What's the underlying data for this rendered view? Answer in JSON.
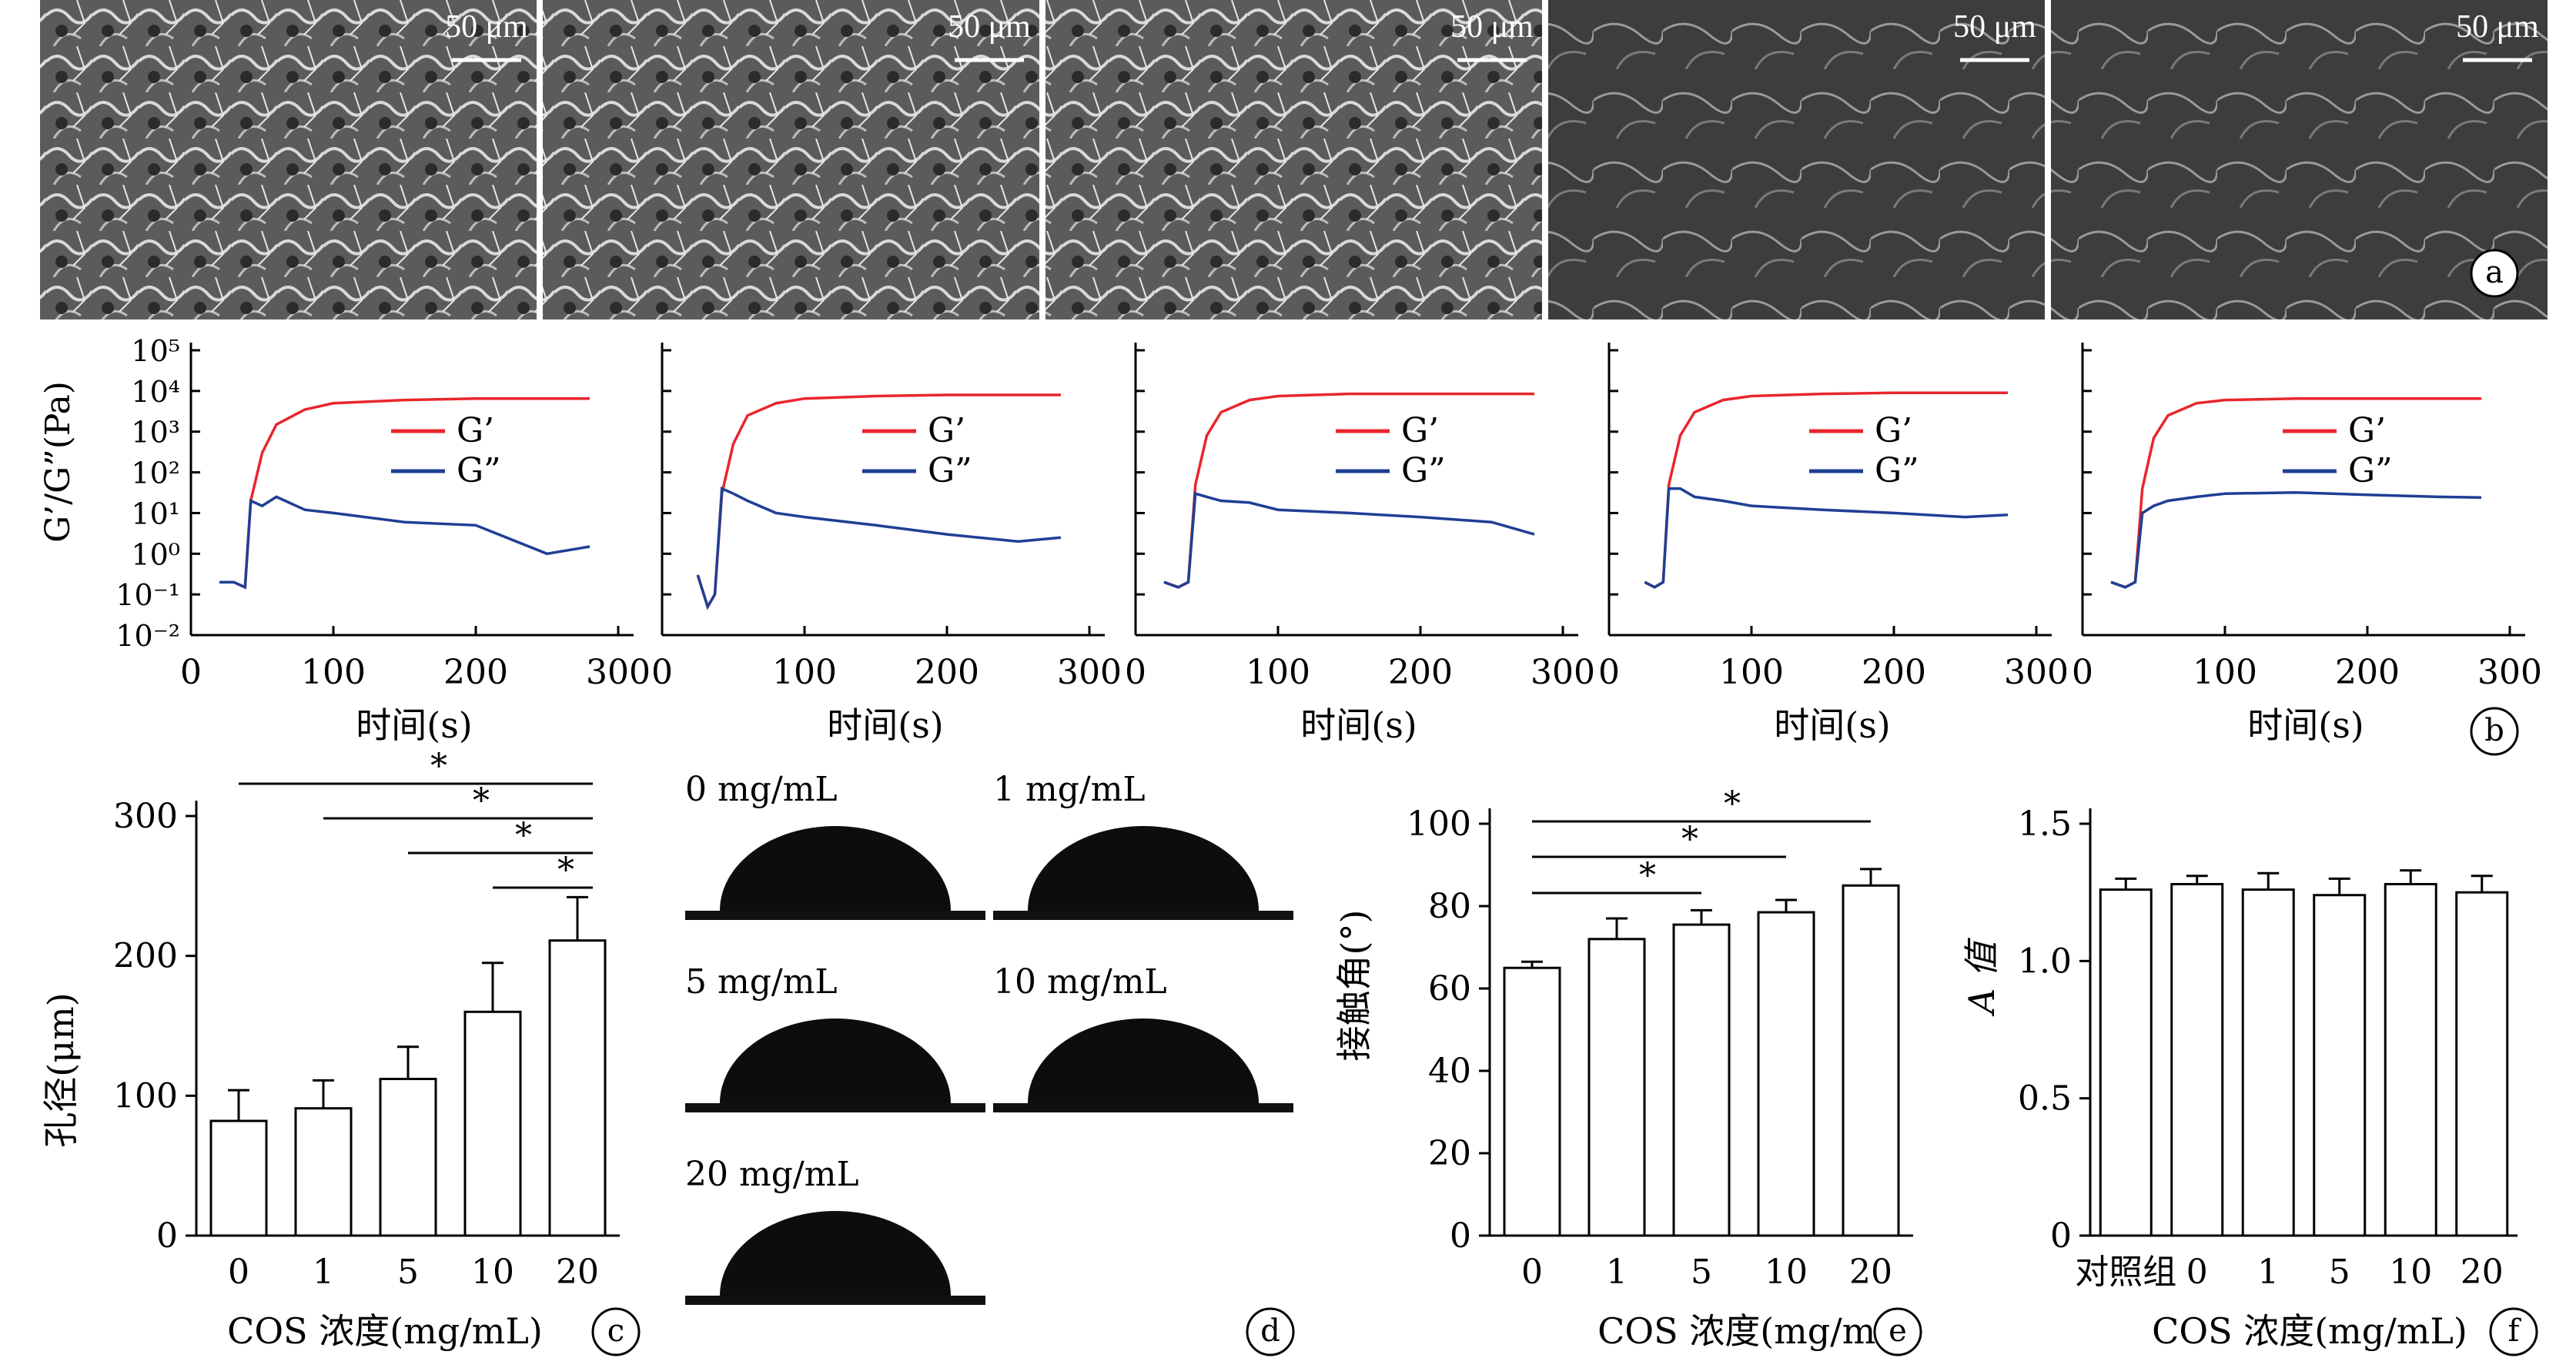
{
  "sem": {
    "scale_label": "50 μm",
    "panel_letter": "a"
  },
  "rheology": {
    "panel_letter": "b",
    "ylabel": "G’/G”(Pa)",
    "xlabel": "时间(s)",
    "x_ticks": [
      "0",
      "100",
      "200",
      "300"
    ],
    "y_ticks": [
      "10⁻²",
      "10⁻¹",
      "10⁰",
      "10¹",
      "10²",
      "10³",
      "10⁴",
      "10⁵"
    ],
    "legend": [
      "G’",
      "G”"
    ],
    "colors": {
      "G_prime": "#e8262d",
      "G_double_prime": "#1f3f94"
    }
  },
  "pore": {
    "panel_letter": "c",
    "ylabel": "孔径(μm)",
    "xlabel": "COS 浓度(mg/mL)",
    "y_ticks": [
      "0",
      "100",
      "200",
      "300"
    ],
    "sig_marks": [
      "*",
      "*",
      "*",
      "*"
    ]
  },
  "droplets": {
    "panel_letter": "d",
    "labels": [
      "0 mg/mL",
      "1 mg/mL",
      "5 mg/mL",
      "10 mg/mL",
      "20 mg/mL"
    ]
  },
  "contact": {
    "panel_letter": "e",
    "ylabel": "接触角(°)",
    "xlabel": "COS 浓度(mg/mL)",
    "y_ticks": [
      "0",
      "20",
      "40",
      "60",
      "80",
      "100"
    ],
    "sig_marks": [
      "*",
      "*",
      "*"
    ]
  },
  "absorb": {
    "panel_letter": "f",
    "ylabel": "A 值",
    "xlabel": "COS 浓度(mg/mL)",
    "y_ticks": [
      "0",
      "0.5",
      "1.0",
      "1.5"
    ]
  },
  "chart_data": [
    {
      "type": "line",
      "panel": "b",
      "log_y": true,
      "xlim": [
        0,
        300
      ],
      "ylim": [
        0.01,
        100000
      ],
      "subplots": [
        {
          "series": [
            {
              "name": "G’",
              "x": [
                20,
                30,
                38,
                42,
                50,
                60,
                80,
                100,
                150,
                200,
                280
              ],
              "y": [
                0.2,
                0.2,
                0.15,
                20,
                300,
                1500,
                3500,
                5000,
                6000,
                6500,
                6500
              ]
            },
            {
              "name": "G”",
              "x": [
                20,
                30,
                38,
                42,
                50,
                60,
                80,
                100,
                150,
                200,
                250,
                280
              ],
              "y": [
                0.2,
                0.2,
                0.15,
                20,
                15,
                25,
                12,
                10,
                6,
                5,
                1,
                1.5
              ]
            }
          ]
        },
        {
          "series": [
            {
              "name": "G’",
              "x": [
                25,
                32,
                37,
                42,
                50,
                60,
                80,
                100,
                150,
                200,
                280
              ],
              "y": [
                0.3,
                0.05,
                0.1,
                30,
                500,
                2500,
                5000,
                6500,
                7500,
                8000,
                8000
              ]
            },
            {
              "name": "G”",
              "x": [
                25,
                32,
                37,
                42,
                50,
                60,
                80,
                100,
                150,
                200,
                250,
                280
              ],
              "y": [
                0.3,
                0.05,
                0.1,
                40,
                30,
                20,
                10,
                8,
                5,
                3,
                2,
                2.5
              ]
            }
          ]
        },
        {
          "series": [
            {
              "name": "G’",
              "x": [
                20,
                30,
                37,
                42,
                50,
                60,
                80,
                100,
                150,
                200,
                280
              ],
              "y": [
                0.2,
                0.15,
                0.2,
                50,
                800,
                3000,
                6000,
                7500,
                8500,
                8500,
                8500
              ]
            },
            {
              "name": "G”",
              "x": [
                20,
                30,
                37,
                42,
                50,
                60,
                80,
                100,
                150,
                200,
                250,
                280
              ],
              "y": [
                0.2,
                0.15,
                0.2,
                30,
                25,
                20,
                18,
                12,
                10,
                8,
                6,
                3
              ]
            }
          ]
        },
        {
          "series": [
            {
              "name": "G’",
              "x": [
                25,
                32,
                38,
                42,
                50,
                60,
                80,
                100,
                150,
                200,
                280
              ],
              "y": [
                0.2,
                0.15,
                0.2,
                50,
                800,
                3000,
                6000,
                7500,
                8500,
                9000,
                9000
              ]
            },
            {
              "name": "G”",
              "x": [
                25,
                32,
                38,
                42,
                50,
                60,
                80,
                100,
                150,
                200,
                250,
                280
              ],
              "y": [
                0.2,
                0.15,
                0.2,
                40,
                40,
                25,
                20,
                15,
                12,
                10,
                8,
                9
              ]
            }
          ]
        },
        {
          "series": [
            {
              "name": "G’",
              "x": [
                20,
                30,
                37,
                42,
                50,
                60,
                80,
                100,
                150,
                200,
                280
              ],
              "y": [
                0.2,
                0.15,
                0.2,
                40,
                700,
                2500,
                5000,
                6000,
                6500,
                6500,
                6500
              ]
            },
            {
              "name": "G”",
              "x": [
                20,
                30,
                37,
                42,
                50,
                60,
                80,
                100,
                150,
                200,
                250,
                280
              ],
              "y": [
                0.2,
                0.15,
                0.2,
                10,
                15,
                20,
                25,
                30,
                32,
                28,
                25,
                24
              ]
            }
          ]
        }
      ]
    },
    {
      "type": "bar",
      "panel": "c",
      "categories": [
        "0",
        "1",
        "5",
        "10",
        "20"
      ],
      "values": [
        82,
        91,
        112,
        160,
        211
      ],
      "errors": [
        22,
        20,
        23,
        35,
        31
      ],
      "ylim": [
        0,
        300
      ]
    },
    {
      "type": "bar",
      "panel": "e",
      "categories": [
        "0",
        "1",
        "5",
        "10",
        "20"
      ],
      "values": [
        65,
        72,
        75.5,
        78.5,
        85
      ],
      "errors": [
        1.5,
        5,
        3.5,
        3,
        4
      ],
      "ylim": [
        0,
        100
      ]
    },
    {
      "type": "bar",
      "panel": "f",
      "categories": [
        "对照组",
        "0",
        "1",
        "5",
        "10",
        "20"
      ],
      "values": [
        1.26,
        1.28,
        1.26,
        1.24,
        1.28,
        1.25
      ],
      "errors": [
        0.04,
        0.03,
        0.06,
        0.06,
        0.05,
        0.06
      ],
      "ylim": [
        0,
        1.5
      ]
    }
  ]
}
